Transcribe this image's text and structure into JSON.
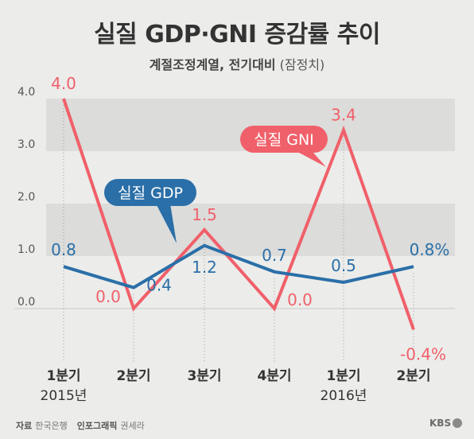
{
  "title": "실질 GDP·GNI 증감률 추이",
  "subtitle": {
    "main": "계절조정계열, 전기대비",
    "note": "(잠정치)"
  },
  "chart_data": {
    "type": "line",
    "categories": [
      "1분기",
      "2분기",
      "3분기",
      "4분기",
      "1분기",
      "2분기"
    ],
    "year_labels": [
      "2015년",
      "",
      "",
      "",
      "2016년",
      ""
    ],
    "series": [
      {
        "name": "실질 GNI",
        "values": [
          4.0,
          0.0,
          1.5,
          0.0,
          3.4,
          -0.4
        ],
        "labels": [
          "4.0",
          "0.0",
          "1.5",
          "0.0",
          "3.4",
          "-0.4%"
        ],
        "color": "#f0606a"
      },
      {
        "name": "실질 GDP",
        "values": [
          0.8,
          0.4,
          1.2,
          0.7,
          0.5,
          0.8
        ],
        "labels": [
          "0.8",
          "0.4",
          "1.2",
          "0.7",
          "0.5",
          "0.8%"
        ],
        "color": "#2a6fa8"
      }
    ],
    "yticks": [
      "4.0",
      "3.0",
      "2.0",
      "1.0",
      "0.0"
    ],
    "ylim": [
      -0.4,
      4.0
    ]
  },
  "source": {
    "label": "자료",
    "value": "한국은행",
    "graphic_label": "인포그래픽",
    "graphic_value": "권세라"
  },
  "logo": "KBS"
}
